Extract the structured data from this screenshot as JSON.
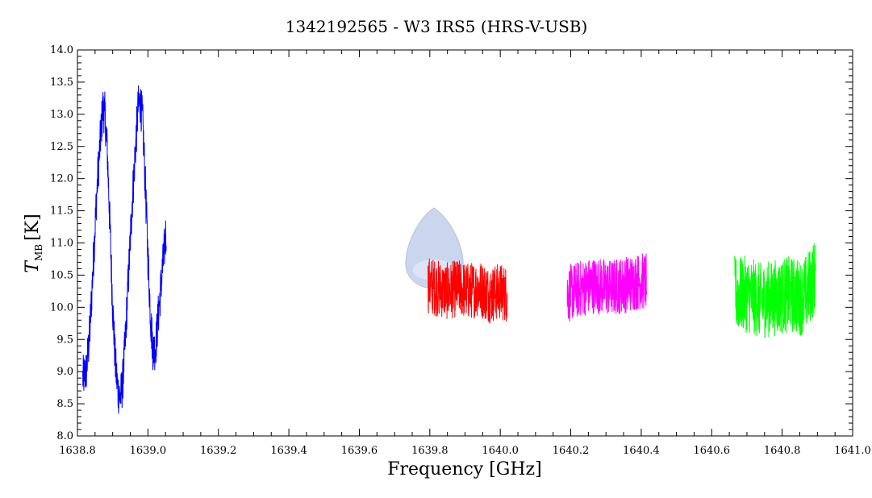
{
  "chart_data": {
    "type": "line",
    "title": "1342192565 - W3 IRS5 (HRS-V-USB)",
    "xlabel": "Frequency [GHz]",
    "ylabel_main": "T",
    "ylabel_sub": "MB",
    "ylabel_unit": "[K]",
    "xlim": [
      1638.8,
      1641.0
    ],
    "ylim": [
      8.0,
      14.0
    ],
    "x_ticks": [
      "1638.8",
      "1639.0",
      "1639.2",
      "1639.4",
      "1639.6",
      "1639.8",
      "1640.0",
      "1640.2",
      "1640.4",
      "1640.6",
      "1640.8",
      "1641.0"
    ],
    "y_ticks": [
      "8.0",
      "8.5",
      "9.0",
      "9.5",
      "10.0",
      "10.5",
      "11.0",
      "11.5",
      "12.0",
      "12.5",
      "13.0",
      "13.5",
      "14.0"
    ],
    "grid": false,
    "colors": {
      "blue": "#0000ff",
      "red": "#ff0000",
      "magenta": "#ff00ff",
      "green": "#00ff00"
    },
    "series": [
      {
        "color": "#0000ff",
        "x": [
          1638.815,
          1638.825,
          1638.835,
          1638.845,
          1638.855,
          1638.865,
          1638.872,
          1638.878,
          1638.885,
          1638.892,
          1638.9,
          1638.908,
          1638.915,
          1638.922,
          1638.928,
          1638.935,
          1638.945,
          1638.955,
          1638.965,
          1638.972,
          1638.978,
          1638.985,
          1638.992,
          1639.0,
          1639.008,
          1639.015,
          1639.022,
          1639.03,
          1639.038,
          1639.045,
          1639.052
        ],
        "y": [
          8.9,
          9.0,
          9.6,
          10.7,
          11.8,
          12.6,
          13.1,
          13.0,
          12.4,
          11.3,
          10.0,
          9.1,
          8.7,
          8.6,
          8.8,
          9.4,
          10.5,
          11.6,
          12.5,
          13.1,
          13.2,
          12.9,
          12.0,
          10.8,
          9.8,
          9.3,
          9.4,
          9.9,
          10.4,
          10.8,
          11.2
        ],
        "noise": 0.35
      },
      {
        "color": "#ff0000",
        "x": [
          1639.795,
          1639.82,
          1639.85,
          1639.88,
          1639.91,
          1639.94,
          1639.97,
          1640.0,
          1640.02
        ],
        "y": [
          10.35,
          10.3,
          10.25,
          10.3,
          10.25,
          10.3,
          10.2,
          10.25,
          10.2
        ],
        "noise": 0.45
      },
      {
        "color": "#ff00ff",
        "x": [
          1640.19,
          1640.23,
          1640.27,
          1640.31,
          1640.35,
          1640.39,
          1640.415
        ],
        "y": [
          10.2,
          10.3,
          10.35,
          10.3,
          10.35,
          10.4,
          10.4
        ],
        "noise": 0.45
      },
      {
        "color": "#00ff00",
        "x": [
          1640.665,
          1640.7,
          1640.74,
          1640.78,
          1640.82,
          1640.86,
          1640.895
        ],
        "y": [
          10.2,
          10.2,
          10.1,
          10.15,
          10.2,
          10.15,
          10.5
        ],
        "noise": 0.6
      }
    ]
  }
}
